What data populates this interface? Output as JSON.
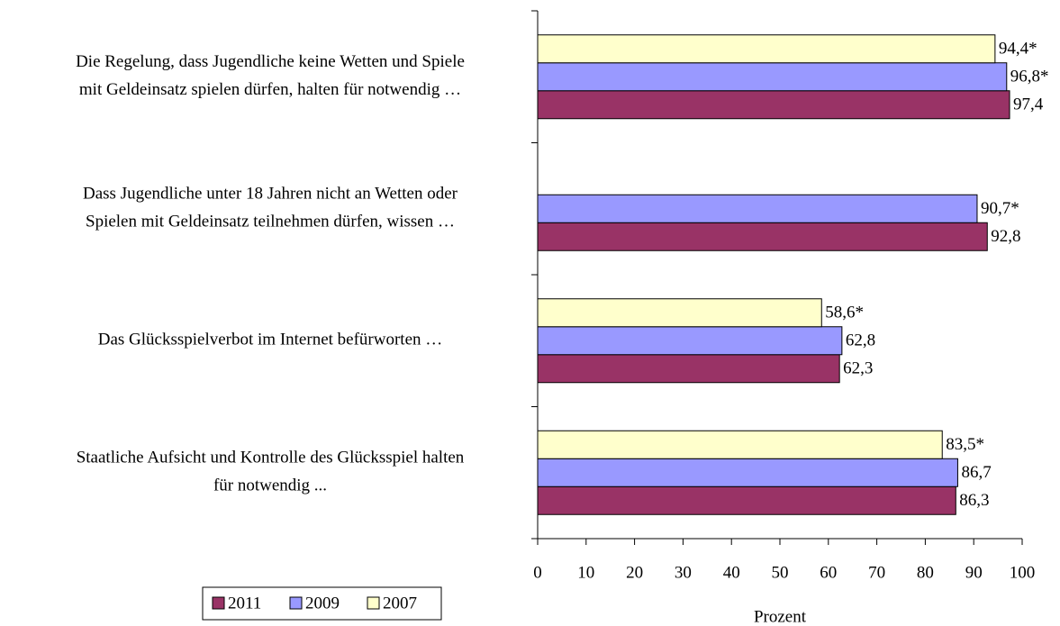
{
  "chart_data": {
    "type": "bar",
    "orientation": "horizontal",
    "categories": [
      [
        "Die Regelung, dass Jugendliche  keine Wetten und Spiele",
        "mit Geldeinsatz spielen dürfen, halten für notwendig …"
      ],
      [
        "Dass Jugendliche unter 18 Jahren nicht an Wetten oder",
        "Spielen mit Geldeinsatz teilnehmen dürfen, wissen …"
      ],
      [
        "Das Glücksspielverbot im Internet befürworten …"
      ],
      [
        "Staatliche Aufsicht und Kontrolle des Glücksspiel halten",
        "für notwendig ..."
      ]
    ],
    "series": [
      {
        "name": "2011",
        "color": "#993366",
        "values": [
          97.4,
          92.8,
          62.3,
          86.3
        ],
        "value_labels": [
          "97,4",
          "92,8",
          "62,3",
          "86,3"
        ]
      },
      {
        "name": "2009",
        "color": "#9999ff",
        "values": [
          96.8,
          90.7,
          62.8,
          86.7
        ],
        "value_labels": [
          "96,8*",
          "90,7*",
          "62,8",
          "86,7"
        ]
      },
      {
        "name": "2007",
        "color": "#ffffcc",
        "values": [
          94.4,
          null,
          58.6,
          83.5
        ],
        "value_labels": [
          "94,4*",
          null,
          "58,6*",
          "83,5*"
        ]
      }
    ],
    "xlabel": "Prozent",
    "xlim": [
      0,
      100
    ],
    "xticks": [
      0,
      10,
      20,
      30,
      40,
      50,
      60,
      70,
      80,
      90,
      100
    ],
    "legend": "bottom-left"
  }
}
